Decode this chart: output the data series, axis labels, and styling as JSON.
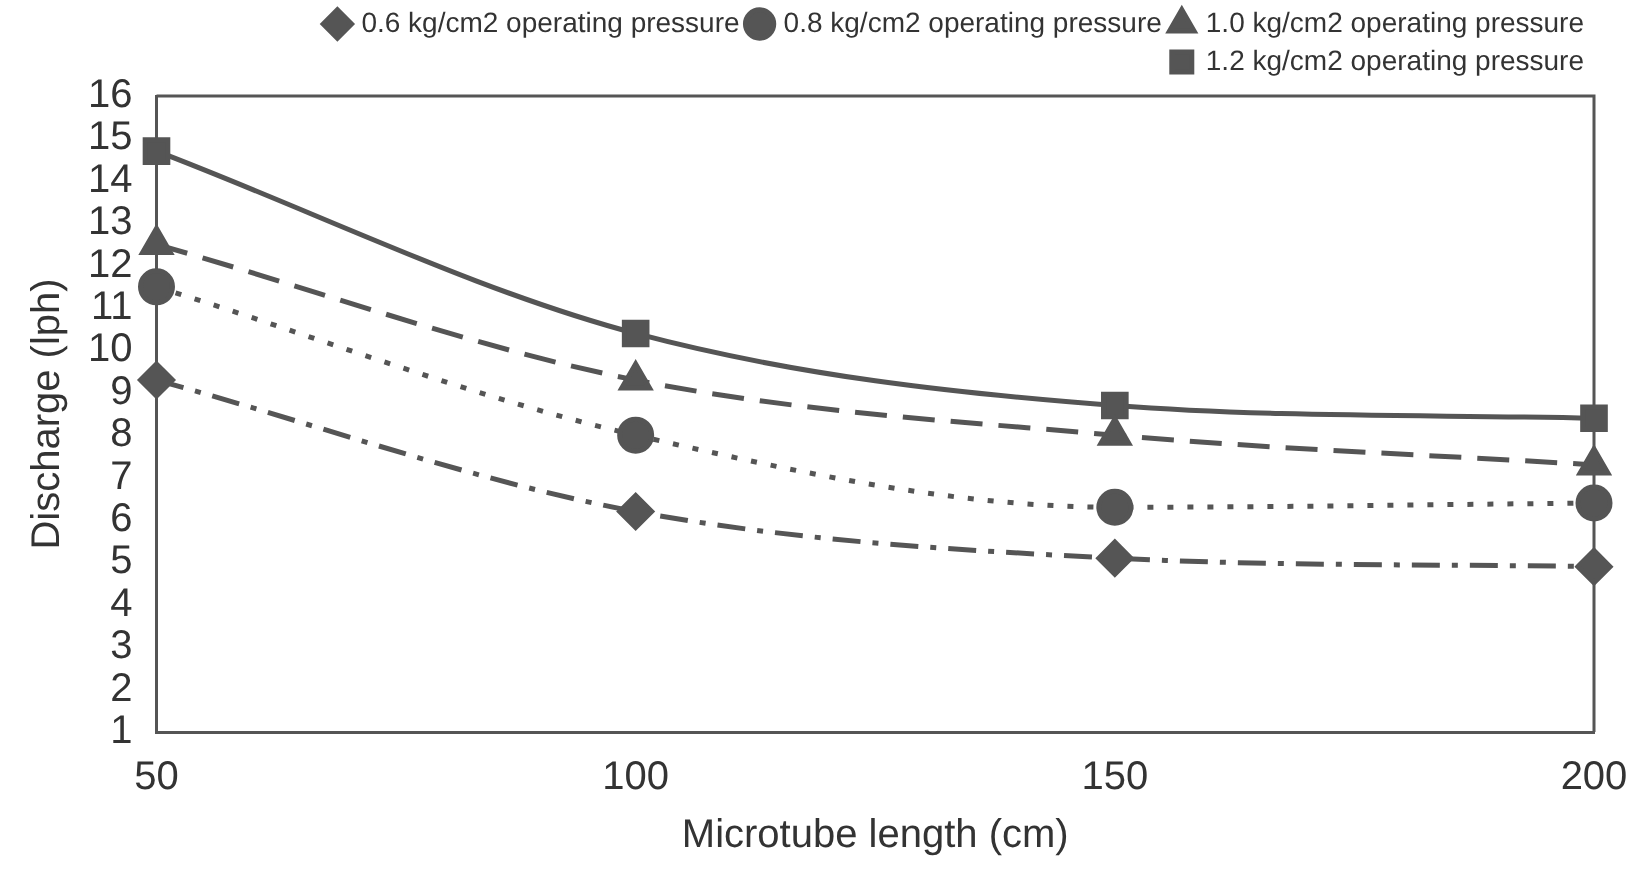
{
  "chart_data": {
    "type": "line",
    "xlabel": "Microtube length (cm)",
    "ylabel": "Discharge (lph)",
    "x": [
      50,
      100,
      150,
      200
    ],
    "series": [
      {
        "name": "0.6 kg/cm2 operating pressure",
        "color": "#555555",
        "values": [
          9.3,
          6.2,
          5.1,
          4.9
        ],
        "marker": "diamond",
        "line_style": "dashdot"
      },
      {
        "name": "0.8 kg/cm2 operating pressure",
        "color": "#555555",
        "values": [
          11.5,
          8.0,
          6.3,
          6.4
        ],
        "marker": "circle",
        "line_style": "dotted"
      },
      {
        "name": "1.0 kg/cm2 operating pressure",
        "color": "#555555",
        "values": [
          12.5,
          9.3,
          8.0,
          7.3
        ],
        "marker": "triangle",
        "line_style": "dashed"
      },
      {
        "name": "1.2 kg/cm2 operating pressure",
        "color": "#555555",
        "values": [
          14.7,
          10.4,
          8.7,
          8.4
        ],
        "marker": "square",
        "line_style": "solid"
      }
    ],
    "xlim": [
      50,
      200
    ],
    "xticks": [
      50,
      100,
      150,
      200
    ],
    "ylim": [
      1,
      16
    ],
    "yticks": [
      1,
      2,
      3,
      4,
      5,
      6,
      7,
      8,
      9,
      10,
      11,
      12,
      13,
      14,
      15,
      16
    ],
    "grid": false,
    "legend": "top right"
  }
}
